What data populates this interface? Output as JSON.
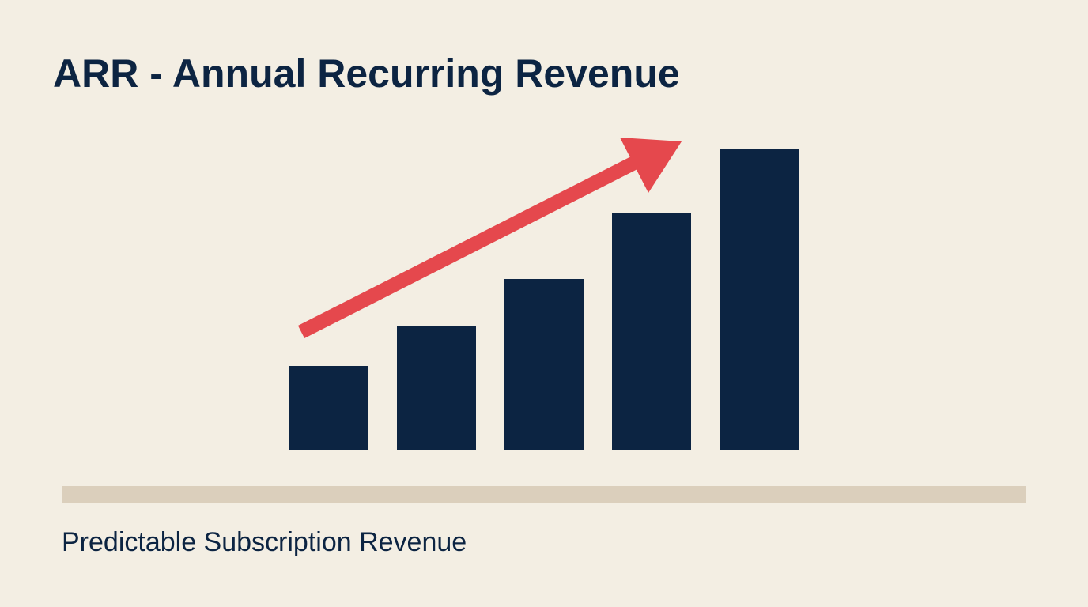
{
  "chart_data": {
    "type": "bar",
    "title": "ARR - Annual Recurring Revenue",
    "subtitle": "Predictable Subscription Revenue",
    "values": [
      106,
      156,
      216,
      299,
      381
    ],
    "color": "#0c2442"
  }
}
